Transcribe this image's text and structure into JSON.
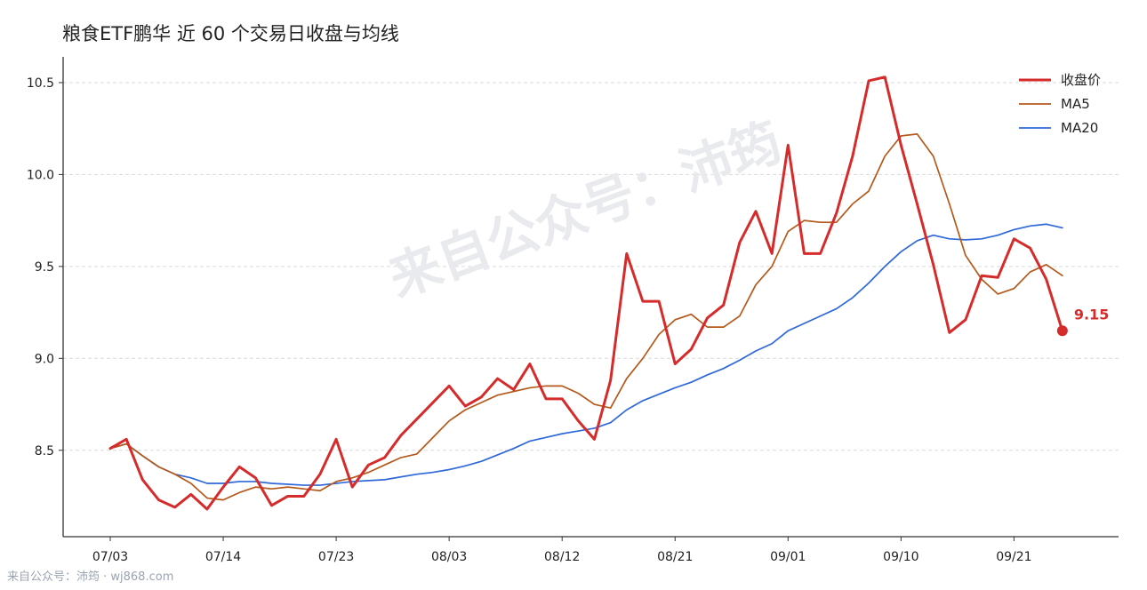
{
  "chart_data": {
    "type": "line",
    "title": "粮食ETF鹏华 近 60 个交易日收盘与均线",
    "xlabel": "",
    "ylabel": "",
    "ylim": [
      8.03,
      10.64
    ],
    "yticks": [
      8.5,
      9.0,
      9.5,
      10.0,
      10.5
    ],
    "ytick_labels": [
      "8.5",
      "9.0",
      "9.5",
      "10.0",
      "10.5"
    ],
    "x_tick_labels": [
      "07/03",
      "07/14",
      "07/23",
      "08/03",
      "08/12",
      "08/21",
      "09/01",
      "09/10",
      "09/21"
    ],
    "x_tick_index": [
      0,
      7,
      14,
      21,
      28,
      35,
      42,
      49,
      56
    ],
    "grid": "horizontal dashed",
    "legend_position": "top-right",
    "series": [
      {
        "name": "收盘价",
        "color": "#d62b2b",
        "values": [
          8.51,
          8.56,
          8.34,
          8.23,
          8.19,
          8.26,
          8.18,
          8.3,
          8.41,
          8.35,
          8.2,
          8.25,
          8.25,
          8.37,
          8.56,
          8.3,
          8.42,
          8.46,
          8.58,
          8.67,
          8.76,
          8.85,
          8.74,
          8.79,
          8.89,
          8.83,
          8.97,
          8.78,
          8.78,
          8.66,
          8.56,
          8.88,
          9.57,
          9.31,
          9.31,
          8.97,
          9.05,
          9.22,
          9.29,
          9.63,
          9.8,
          9.57,
          10.16,
          9.57,
          9.57,
          9.79,
          10.1,
          10.51,
          10.53,
          10.16,
          9.84,
          9.51,
          9.14,
          9.21,
          9.45,
          9.44,
          9.65,
          9.6,
          9.43,
          9.15
        ]
      },
      {
        "name": "MA5",
        "color": "#b5591b",
        "values": [
          8.51,
          8.535,
          8.47,
          8.41,
          8.37,
          8.32,
          8.24,
          8.23,
          8.27,
          8.3,
          8.29,
          8.3,
          8.29,
          8.28,
          8.33,
          8.35,
          8.38,
          8.42,
          8.46,
          8.48,
          8.57,
          8.66,
          8.72,
          8.76,
          8.8,
          8.82,
          8.84,
          8.85,
          8.85,
          8.81,
          8.75,
          8.73,
          8.89,
          9.0,
          9.13,
          9.21,
          9.24,
          9.17,
          9.17,
          9.23,
          9.4,
          9.5,
          9.69,
          9.75,
          9.74,
          9.74,
          9.84,
          9.91,
          10.1,
          10.21,
          10.22,
          10.1,
          9.84,
          9.56,
          9.43,
          9.35,
          9.38,
          9.47,
          9.51,
          9.45
        ]
      },
      {
        "name": "MA20",
        "color": "#2f68d8",
        "values": [
          8.51,
          8.535,
          8.47,
          8.41,
          8.37,
          8.35,
          8.32,
          8.32,
          8.33,
          8.33,
          8.32,
          8.315,
          8.31,
          8.31,
          8.32,
          8.33,
          8.335,
          8.34,
          8.355,
          8.37,
          8.38,
          8.395,
          8.415,
          8.44,
          8.475,
          8.51,
          8.55,
          8.57,
          8.59,
          8.605,
          8.62,
          8.65,
          8.72,
          8.77,
          8.805,
          8.84,
          8.87,
          8.91,
          8.945,
          8.99,
          9.04,
          9.08,
          9.15,
          9.19,
          9.23,
          9.27,
          9.33,
          9.41,
          9.5,
          9.58,
          9.64,
          9.67,
          9.65,
          9.645,
          9.65,
          9.67,
          9.7,
          9.72,
          9.73,
          9.71
        ]
      }
    ],
    "last_label": "9.15"
  },
  "watermark": "来自公众号：沛筠",
  "footer": "来自公众号：沛筠 · wj868.com"
}
